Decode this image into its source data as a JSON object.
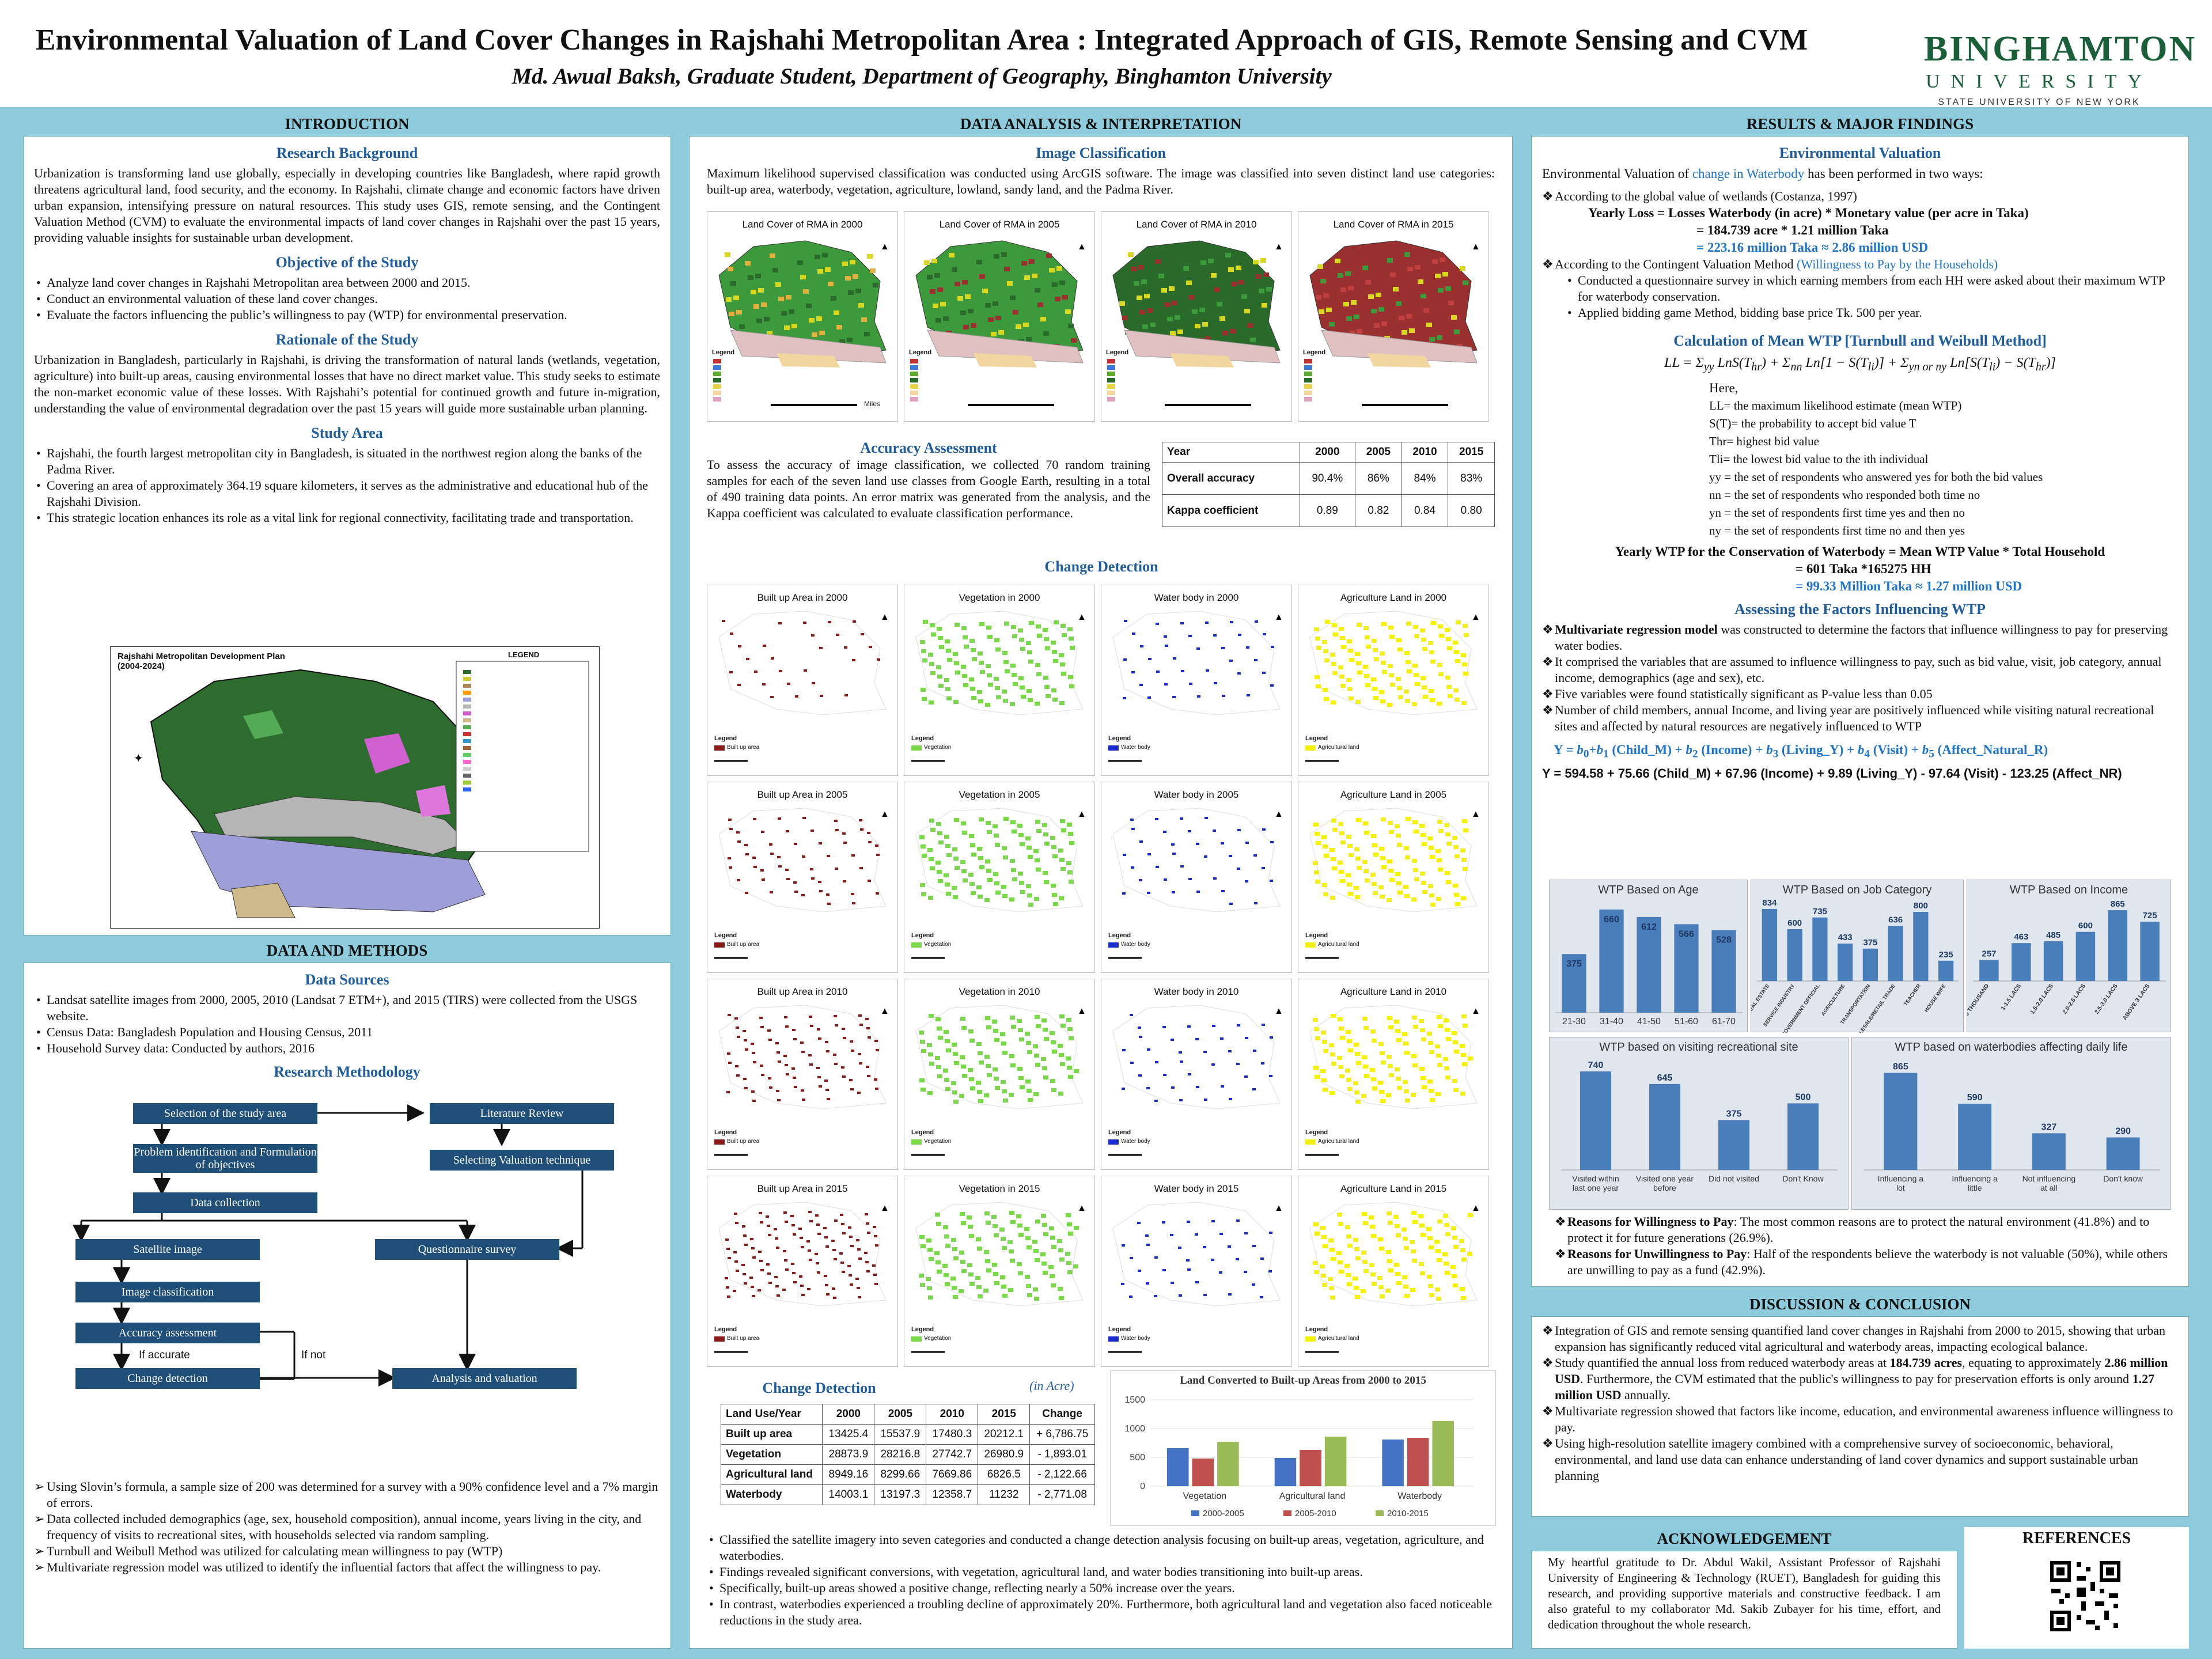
{
  "header": {
    "title": "Environmental Valuation of Land Cover Changes in Rajshahi Metropolitan Area : Integrated Approach of GIS, Remote Sensing and CVM",
    "authors": "Md. Awual Baksh, Graduate Student, Department of Geography, Binghamton University",
    "logo_line1": "BINGHAMTON",
    "logo_line2": "UNIVERSITY",
    "logo_line3": "STATE UNIVERSITY OF NEW YORK"
  },
  "intro": {
    "heading": "INTRODUCTION",
    "rb_title": "Research Background",
    "rb_text": "Urbanization is transforming land use globally, especially in developing countries like Bangladesh, where rapid growth threatens agricultural land, food security, and the economy. In Rajshahi, climate change and economic factors have driven urban expansion, intensifying pressure on natural resources. This study uses GIS, remote sensing, and the Contingent Valuation Method (CVM) to evaluate the environmental impacts of land cover changes in Rajshahi over the past 15 years, providing valuable insights for sustainable urban development.",
    "obj_title": "Objective of the Study",
    "objectives": [
      "Analyze land cover changes in Rajshahi Metropolitan area between 2000 and 2015.",
      "Conduct an environmental valuation of these land cover changes.",
      "Evaluate the factors influencing the public’s willingness to pay (WTP) for environmental preservation."
    ],
    "rat_title": "Rationale of the Study",
    "rat_text": "Urbanization in Bangladesh, particularly in Rajshahi, is driving the transformation of natural lands (wetlands, vegetation, agriculture) into built-up areas, causing environmental losses that have no direct market value. This study seeks to estimate the non-market economic value of these losses. With Rajshahi’s potential for continued growth and future in-migration, understanding the value of environmental degradation over the past 15 years will guide more sustainable urban planning.",
    "sa_title": "Study Area",
    "study_area": [
      "Rajshahi, the fourth largest metropolitan city in Bangladesh, is situated in the northwest region along the banks of the Padma River.",
      "Covering an area of approximately 364.19 square kilometers, it serves as the administrative and educational hub of the Rajshahi Division.",
      "This strategic location enhances its role as a vital link for regional connectivity, facilitating trade and transportation."
    ],
    "map_title": "Rajshahi Metropolitan Development Plan (2004-2024)",
    "map_legend": "LEGEND"
  },
  "dm": {
    "heading": "DATA AND METHODS",
    "ds_title": "Data Sources",
    "sources": [
      "Landsat satellite images from 2000, 2005, 2010 (Landsat 7 ETM+), and 2015 (TIRS) were collected from the USGS website.",
      "Census Data: Bangladesh Population and Housing Census, 2011",
      "Household Survey data: Conducted by authors, 2016"
    ],
    "rm_title": "Research Methodology",
    "flow": {
      "b1": "Selection of the study area",
      "b2": "Literature Review",
      "b3": "Problem identification and Formulation of objectives",
      "b4": "Selecting Valuation technique",
      "b5": "Data collection",
      "b6": "Satellite image",
      "b7": "Questionnaire survey",
      "b8": "Image classification",
      "b9": "Accuracy assessment",
      "b10": "Change detection",
      "b11": "Analysis and valuation",
      "if_accurate": "If accurate",
      "if_not": "If not"
    },
    "bullets": [
      "Using Slovin’s formula, a sample size of 200 was determined for a survey with a 90% confidence level and a 7% margin of errors.",
      "Data collected included demographics (age, sex, household composition), annual income, years living in the city, and frequency of visits to recreational sites, with households selected via random sampling.",
      "Turnbull and Weibull Method was utilized for calculating mean willingness to pay (WTP)",
      "Multivariate regression model was utilized to identify the influential factors that affect the willingness to pay."
    ]
  },
  "da": {
    "heading": "DATA ANALYSIS & INTERPRETATION",
    "ic_title": "Image Classification",
    "ic_text": "Maximum likelihood supervised classification was conducted using ArcGIS software. The image was classified into seven distinct land use categories: built-up area, waterbody, vegetation, agriculture, lowland, sandy land, and the Padma River.",
    "lc_maps": [
      "Land Cover of RMA in 2000",
      "Land Cover of RMA in 2005",
      "Land Cover of RMA in 2010",
      "Land Cover of RMA in 2015"
    ],
    "legend": "Legend",
    "miles": "Miles",
    "aa_title": "Accuracy Assessment",
    "aa_text": "To assess the accuracy of image classification, we collected 70 random training samples for each of the seven land use classes from Google Earth, resulting in a total of 490 training data points. An error matrix was generated from the analysis, and the Kappa coefficient was calculated to evaluate classification performance.",
    "acc_table": {
      "head": [
        "Year",
        "2000",
        "2005",
        "2010",
        "2015"
      ],
      "rows": [
        [
          "Overall accuracy",
          "90.4%",
          "86%",
          "84%",
          "83%"
        ],
        [
          "Kappa coefficient",
          "0.89",
          "0.82",
          "0.84",
          "0.80"
        ]
      ]
    },
    "cd_title": "Change Detection",
    "cd_maps": [
      [
        "Built up Area in 2000",
        "Vegetation in 2000",
        "Water body in 2000",
        "Agriculture Land in 2000"
      ],
      [
        "Built up Area in 2005",
        "Vegetation in 2005",
        "Water body in 2005",
        "Agriculture Land in 2005"
      ],
      [
        "Built up Area in 2010",
        "Vegetation in 2010",
        "Water body in 2010",
        "Agriculture Land in 2010"
      ],
      [
        "Built up Area in 2015",
        "Vegetation in 2015",
        "Water body in 2015",
        "Agriculture Land in 2015"
      ]
    ],
    "cd_legends": [
      "Built up area",
      "Vegetation",
      "Water body",
      "Agricultural land"
    ],
    "cd2_title": "Change Detection",
    "cd2_unit": "(in Acre)",
    "cd_table": {
      "head": [
        "Land Use/Year",
        "2000",
        "2005",
        "2010",
        "2015",
        "Change"
      ],
      "rows": [
        [
          "Built up area",
          "13425.4",
          "15537.9",
          "17480.3",
          "20212.1",
          "+ 6,786.75"
        ],
        [
          "Vegetation",
          "28873.9",
          "28216.8",
          "27742.7",
          "26980.9",
          "- 1,893.01"
        ],
        [
          "Agricultural land",
          "8949.16",
          "8299.66",
          "7669.86",
          "6826.5",
          "- 2,122.66"
        ],
        [
          "Waterbody",
          "14003.1",
          "13197.3",
          "12358.7",
          "11232",
          "- 2,771.08"
        ]
      ]
    },
    "bullets": [
      "Classified the satellite imagery into seven categories and conducted a change detection analysis focusing on built-up areas, vegetation, agriculture, and waterbodies.",
      "Findings revealed significant conversions, with vegetation, agricultural land, and water bodies transitioning into built-up areas.",
      "Specifically, built-up areas showed a positive change, reflecting nearly a 50% increase over the years.",
      "In contrast, waterbodies experienced a troubling decline of approximately 20%. Furthermore, both agricultural land and vegetation also faced noticeable reductions in the study area."
    ]
  },
  "chart_data": [
    {
      "type": "bar",
      "title": "Land Converted to Built-up Areas from 2000 to 2015",
      "categories": [
        "Vegetation",
        "Agricultural land",
        "Waterbody"
      ],
      "series": [
        {
          "name": "2000-2005",
          "values": [
            660,
            490,
            810
          ]
        },
        {
          "name": "2005-2010",
          "values": [
            480,
            630,
            840
          ]
        },
        {
          "name": "2010-2015",
          "values": [
            770,
            860,
            1130
          ]
        }
      ],
      "ylim": [
        0,
        1500
      ],
      "yticks": [
        0,
        500,
        1000,
        1500
      ],
      "colors": [
        "#4472c4",
        "#c0504d",
        "#9bbb59"
      ],
      "legend_position": "bottom"
    },
    {
      "type": "bar",
      "title": "WTP Based on Age",
      "categories": [
        "21-30",
        "31-40",
        "41-50",
        "51-60",
        "61-70"
      ],
      "values": [
        375,
        660,
        612,
        566,
        528
      ]
    },
    {
      "type": "bar",
      "title": "WTP Based on Job Category",
      "categories": [
        "PRIVATE AND REAL ESTATE",
        "SERVICE INDUSTRY",
        "GOVERNMENT OFFICIAL",
        "AGRICULTURE",
        "TRANSPORTATION",
        "WHOLESALE/RETAIL TRADE",
        "TEACHER",
        "HOUSE WIFE"
      ],
      "values": [
        834,
        600,
        735,
        433,
        375,
        636,
        800,
        235
      ]
    },
    {
      "type": "bar",
      "title": "WTP Based on  Income",
      "categories": [
        "50-100 THOUSAND",
        "1-1.5 LACS",
        "1.5-2.0 LACS",
        "2.0-2.5 LACS",
        "2.5-3.0 LACS",
        "ABOVE 3 LACS"
      ],
      "values": [
        257,
        463,
        485,
        600,
        865,
        725
      ]
    },
    {
      "type": "bar",
      "title": "WTP based on visiting recreational site",
      "categories": [
        "Visited within last one year",
        "Visited one year before",
        "Did not visited",
        "Don't Know"
      ],
      "values": [
        740,
        645,
        375,
        500
      ]
    },
    {
      "type": "bar",
      "title": "WTP based on waterbodies affecting daily life",
      "categories": [
        "Influencing a lot",
        "Influencing a little",
        "Not influencing at all",
        "Don't know"
      ],
      "values": [
        865,
        590,
        327,
        290
      ]
    }
  ],
  "res": {
    "heading": "RESULTS & MAJOR FINDINGS",
    "ev_title": "Environmental Valuation",
    "ev_intro_a": "Environmental Valuation of ",
    "ev_intro_b": "change in Waterbody",
    "ev_intro_c": " has been performed in two ways:",
    "ev1": "According to the global value of wetlands (Costanza, 1997)",
    "f1": "Yearly Loss = Losses Waterbody (in acre) * Monetary value (per acre in Taka)",
    "f2": "= 184.739 acre * 1.21 million Taka",
    "f3": "= 223.16 million Taka ≈  2.86 million USD",
    "ev2a": "According to the Contingent Valuation Method ",
    "ev2b": "(Willingness to Pay by the Households)",
    "ev_sub": [
      "Conducted a questionnaire survey in which earning members from each HH were asked about their maximum WTP for waterbody conservation.",
      "Applied bidding game Method, bidding base price Tk. 500 per year."
    ],
    "mwtp_title": "Calculation of Mean WTP [Turnbull and Weibull Method]",
    "here": "Here,",
    "defs": [
      "LL= the maximum likelihood estimate (mean WTP)",
      "S(T)= the probability to accept bid value T",
      "Thr= highest bid value",
      "Tli= the lowest bid value to the ith individual",
      "yy = the set of respondents who answered yes for both the bid values",
      "nn = the set of respondents who responded both time no",
      "yn = the set of respondents first time yes and then no",
      "ny = the set of respondents first time no and then yes"
    ],
    "y1": "Yearly WTP for the Conservation of Waterbody = Mean WTP Value * Total Household",
    "y2": "= 601 Taka *165275 HH",
    "y3": "= 99.33 Million Taka ≈  1.27 million USD",
    "af_title": "Assessing the Factors Influencing WTP",
    "af_bold": "Multivariate regression model",
    "af1": " was constructed to determine the factors that influence willingness to pay for preserving water bodies.",
    "af2": "It comprised the variables that are assumed to influence willingness to pay, such as bid value, visit, job category, annual income, demographics (age and sex), etc.",
    "af3": "Five variables were found statistically significant as P-value less than 0.05",
    "af4": "Number of child members, annual Income, and living year are positively influenced while visiting natural recreational sites and affected by natural resources are negatively influenced to WTP",
    "reg_eq": "Y = 594.58 + 75.66 (Child_M) + 67.96 (Income) + 9.89 (Living_Y) - 97.64 (Visit) - 123.25 (Affect_NR)",
    "rw_bold": "Reasons for Willingness to Pay",
    "rw_text": ": The most common reasons are to protect the natural environment (41.8%) and to protect it for future generations (26.9%).",
    "ru_bold": "Reasons for Unwillingness to Pay",
    "ru_text": ": Half of the respondents believe the waterbody is not valuable (50%), while others are unwilling to pay as a fund (42.9%)."
  },
  "disc": {
    "heading": "DISCUSSION & CONCLUSION",
    "i1": "Integration of GIS and remote sensing quantified land cover changes in Rajshahi from 2000 to 2015, showing that urban expansion has significantly reduced vital agricultural and waterbody areas, impacting ecological balance.",
    "i2a": "Study quantified the annual loss from reduced waterbody areas at ",
    "i2b": "184.739 acres",
    "i2c": ", equating to approximately ",
    "i2d": "2.86 million USD",
    "i2e": ". Furthermore, the CVM estimated that the public's willingness to pay for preservation efforts is only around ",
    "i2f": "1.27 million USD",
    "i2g": " annually.",
    "i3": "Multivariate regression showed that factors like income, education, and environmental awareness influence willingness to pay.",
    "i4": "Using high-resolution satellite imagery combined with a comprehensive survey of socioeconomic, behavioral, environmental, and land use data can enhance understanding of land cover dynamics and support sustainable urban planning"
  },
  "ack": {
    "heading": "ACKNOWLEDGEMENT",
    "text": "My heartful gratitude to Dr. Abdul Wakil, Assistant Professor of Rajshahi University of Engineering & Technology (RUET), Bangladesh for guiding this research, and providing supportive materials and constructive feedback. I am also grateful to my collaborator Md. Sakib Zubayer for his time, effort, and dedication throughout the whole research."
  },
  "refs": {
    "heading": "REFERENCES"
  }
}
